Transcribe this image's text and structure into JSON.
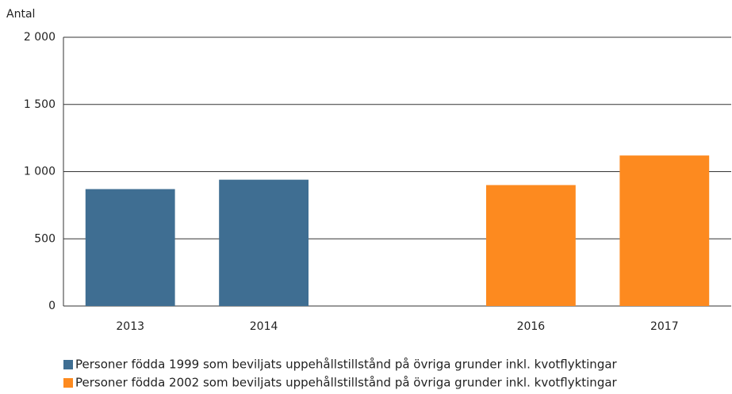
{
  "chart_data": {
    "type": "bar",
    "y_label": "Antal",
    "categories": [
      "2013",
      "2014",
      null,
      "2016",
      "2017"
    ],
    "series": [
      {
        "name": "Personer födda 1999 som beviljats uppehållstillstånd på övriga grunder inkl. kvotflyktingar",
        "color": "#3f6e92",
        "values": [
          870,
          940,
          null,
          null,
          null
        ]
      },
      {
        "name": "Personer födda 2002 som beviljats uppehållstillstånd på övriga grunder inkl. kvotflyktingar",
        "color": "#fd8a1f",
        "values": [
          null,
          null,
          null,
          900,
          1120
        ]
      }
    ],
    "ylim": [
      0,
      2000
    ],
    "yticks": [
      0,
      500,
      {
        "value": 1000,
        "label": "1 000"
      },
      {
        "value": 1500,
        "label": "1 500"
      },
      {
        "value": 2000,
        "label": "2 000"
      }
    ],
    "grid": true
  }
}
